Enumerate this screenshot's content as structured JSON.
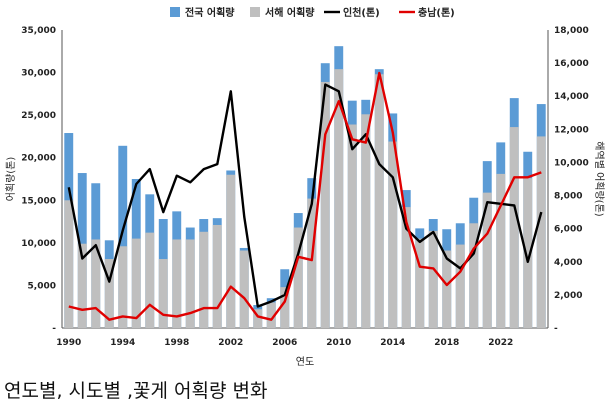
{
  "chart_data": {
    "type": "bar",
    "xlabel": "연도",
    "ylabel_left": "어획량(톤)",
    "ylabel_right": "해역별 어획량(톤)",
    "ylim_left": [
      0,
      35000
    ],
    "ylim_right": [
      0,
      18000
    ],
    "left_ticks": [
      "35,000",
      "30,000",
      "25,000",
      "20,000",
      "15,000",
      "10,000",
      "5,000",
      "-"
    ],
    "right_ticks": [
      "18,000",
      "16,000",
      "14,000",
      "12,000",
      "10,000",
      "8,000",
      "6,000",
      "4,000",
      "2,000",
      "-"
    ],
    "x_ticks": [
      "1990",
      "1994",
      "1998",
      "2002",
      "2006",
      "2010",
      "2014",
      "2018",
      "2022"
    ],
    "years": [
      1990,
      1991,
      1992,
      1993,
      1994,
      1995,
      1996,
      1997,
      1998,
      1999,
      2000,
      2001,
      2002,
      2003,
      2004,
      2005,
      2006,
      2007,
      2008,
      2009,
      2010,
      2011,
      2012,
      2013,
      2014,
      2015,
      2016,
      2017,
      2018,
      2019,
      2020,
      2021,
      2022,
      2023,
      2024,
      2025
    ],
    "series": [
      {
        "name": "전국 어획량",
        "axis": "left",
        "kind": "bar",
        "color": "#5b9bd5",
        "values": [
          22900,
          18200,
          17000,
          10300,
          21400,
          17500,
          15700,
          12800,
          13700,
          11800,
          12800,
          12900,
          18500,
          9400,
          2700,
          3500,
          6900,
          13500,
          17600,
          31100,
          33100,
          26700,
          26800,
          30400,
          25200,
          16200,
          11700,
          12800,
          11600,
          12300,
          15300,
          19600,
          21800,
          27000,
          20700,
          26300
        ]
      },
      {
        "name": "서해 어획량",
        "axis": "left",
        "kind": "bar",
        "color": "#bfbfbf",
        "values": [
          15000,
          9900,
          10400,
          8100,
          9600,
          10500,
          11200,
          8100,
          10400,
          10400,
          11300,
          12100,
          18000,
          9100,
          2200,
          3000,
          4800,
          11800,
          15200,
          28900,
          30400,
          23900,
          25100,
          29800,
          21900,
          14200,
          10500,
          11400,
          9100,
          9800,
          12300,
          15900,
          18100,
          23600,
          17600,
          22500
        ]
      },
      {
        "name": "인천(톤)",
        "axis": "right",
        "kind": "line",
        "color": "#000000",
        "values": [
          8500,
          4200,
          5000,
          2800,
          5900,
          8700,
          9600,
          7000,
          9200,
          8800,
          9600,
          9900,
          14300,
          6700,
          1300,
          1600,
          2000,
          4500,
          7500,
          14700,
          14300,
          10800,
          11700,
          9900,
          9100,
          6000,
          5200,
          5800,
          4200,
          3600,
          4500,
          7600,
          7500,
          7400,
          4000,
          7000
        ]
      },
      {
        "name": "충남(톤)",
        "axis": "right",
        "kind": "line",
        "color": "#e00000",
        "values": [
          1300,
          1100,
          1200,
          500,
          700,
          600,
          1400,
          800,
          700,
          900,
          1200,
          1200,
          2500,
          1800,
          700,
          500,
          1600,
          4300,
          4100,
          11700,
          13700,
          11400,
          11200,
          15400,
          11800,
          6400,
          3700,
          3600,
          2600,
          3400,
          4800,
          5700,
          7400,
          9100,
          9100,
          9400
        ]
      }
    ]
  },
  "caption": "연도별, 시도별 ,꽃게 어획량 변화"
}
